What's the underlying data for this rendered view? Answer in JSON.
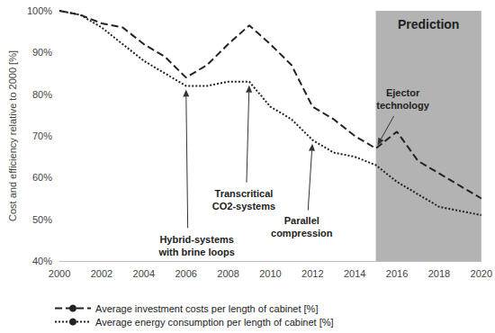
{
  "chart_data": {
    "type": "line",
    "y_label": "Cost and efficiency relative to 2000 [%]",
    "x": [
      2000,
      2001,
      2002,
      2003,
      2004,
      2005,
      2006,
      2007,
      2008,
      2009,
      2010,
      2011,
      2012,
      2013,
      2014,
      2015,
      2016,
      2017,
      2018,
      2019,
      2020
    ],
    "series": [
      {
        "name": "Average investment costs per length of cabinet [%]",
        "color": "#222222",
        "line_style": "dashed",
        "values": [
          100,
          99,
          97,
          96,
          92,
          89,
          84,
          87,
          92,
          96.5,
          92,
          87,
          77,
          74,
          70,
          67,
          71,
          64,
          61,
          58,
          55
        ]
      },
      {
        "name": "Average energy consumption per length of cabinet [%]",
        "color": "#222222",
        "line_style": "dotted",
        "values": [
          100,
          99,
          96,
          92,
          88,
          85,
          82,
          82,
          83,
          83,
          77,
          74,
          69,
          66,
          65,
          63,
          59,
          56,
          53,
          52,
          51
        ]
      }
    ],
    "xlim": [
      2000,
      2020
    ],
    "xticks": [
      2000,
      2002,
      2004,
      2006,
      2008,
      2010,
      2012,
      2014,
      2016,
      2018,
      2020
    ],
    "ylim": [
      40,
      100
    ],
    "yticks": [
      {
        "value": 40,
        "label": "40%"
      },
      {
        "value": 50,
        "label": "50%"
      },
      {
        "value": 60,
        "label": "60%"
      },
      {
        "value": 70,
        "label": "70%"
      },
      {
        "value": 80,
        "label": "80%"
      },
      {
        "value": 90,
        "label": "90%"
      },
      {
        "value": 100,
        "label": "100%"
      }
    ],
    "shaded_region": {
      "from": 2015,
      "to": 2020,
      "label": "Prediction",
      "color": "#a6a6a6"
    },
    "annotations": [
      {
        "text": "Hybrid-systems\nwith brine loops",
        "x": 2006,
        "y": 82
      },
      {
        "text": "Transcritical\nCO2-systems",
        "x": 2009,
        "y": 83
      },
      {
        "text": "Parallel\ncompression",
        "x": 2012,
        "y": 69
      },
      {
        "text": "Ejector\ntechnology",
        "x": 2015,
        "y": 67
      }
    ],
    "grid": false,
    "legend": "bottom"
  }
}
